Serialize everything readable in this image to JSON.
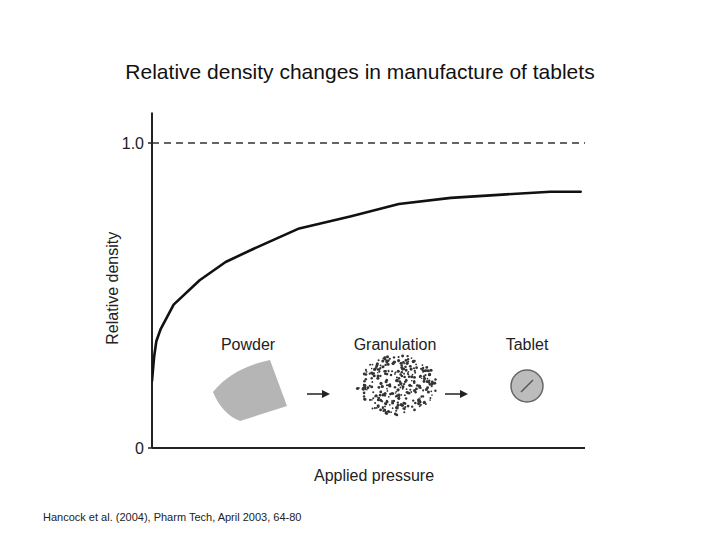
{
  "chart_data": {
    "type": "line",
    "title": "Relative density changes in manufacture of tablets",
    "x_label": "Applied pressure",
    "y_label": "Relative density",
    "x": [
      0,
      0.5,
      1,
      2,
      5,
      11,
      17,
      23,
      34,
      46,
      57,
      69,
      80,
      92,
      99
    ],
    "series": [
      {
        "name": "Relative density",
        "color": "#111111",
        "line_style": "solid",
        "values": [
          0.22,
          0.3,
          0.35,
          0.39,
          0.47,
          0.55,
          0.61,
          0.65,
          0.72,
          0.76,
          0.8,
          0.82,
          0.83,
          0.84,
          0.84
        ]
      }
    ],
    "xlim": [
      0,
      100
    ],
    "ylim": [
      0,
      1.1
    ],
    "yticks": [
      0,
      {
        "value": 1,
        "label": "1.0"
      }
    ],
    "tick_labels": "y",
    "grid": false,
    "hlines": [
      {
        "value": 1,
        "line_style": "dashed",
        "color": "#333333"
      }
    ],
    "annotations": [
      {
        "text": "Powder"
      },
      {
        "text": "Granulation"
      },
      {
        "text": "Tablet"
      }
    ],
    "source": "Hancock et al. (2004), Pharm Tech, April 2003, 64-80"
  }
}
